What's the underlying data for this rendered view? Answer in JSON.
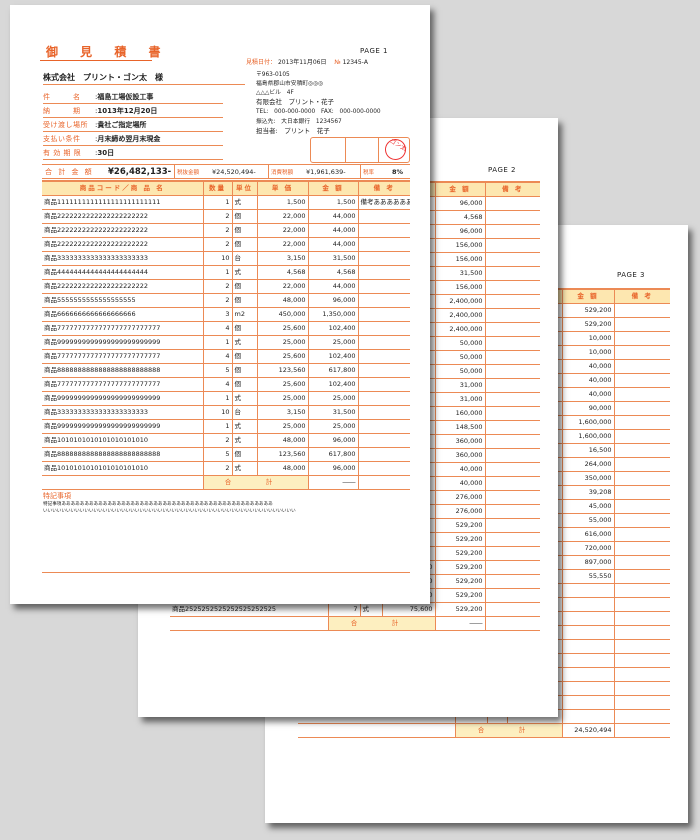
{
  "colors": {
    "accent": "#e8642a",
    "header_bg": "#fde7b0",
    "background": "#d8d8d8"
  },
  "page1": {
    "title": "御 見 積 書",
    "page_label": "PAGE 1",
    "date_label": "見積日付：",
    "date": "2013年11月06日",
    "no_label": "№",
    "no": "12345-A",
    "customer": "株式会社　プリント・ゴン太　様",
    "fields": [
      {
        "label": "件　　　名",
        "value": "福島工場仮設工事"
      },
      {
        "label": "納　　　期",
        "value": "1013年12月20日"
      },
      {
        "label": "受け渡し場所",
        "value": "貴社ご指定場所"
      },
      {
        "label": "支払い条件",
        "value": "月末締め翌月末現金"
      },
      {
        "label": "有 効 期 限",
        "value": "30日"
      }
    ],
    "issuer": [
      "〒963-0105",
      "福島県郡山市安積町◎◎◎",
      "△△△ビル　4F",
      "有限会社　プリント・花子",
      "TEL:　000-000-0000　FAX:　000-000-0000",
      "振込先:　大日本銀行　1234567",
      "担当者:　プリント　花子"
    ],
    "stamp_text": "ゴン太",
    "summary": {
      "total_label": "合 計 金 額",
      "total": "¥26,482,133-",
      "pretax_label": "税抜金額",
      "pretax": "¥24,520,494-",
      "tax_label": "消費税額",
      "tax": "¥1,961,639-",
      "rate_label": "税率",
      "rate": "8%"
    },
    "columns": [
      "商品コード／商 品 名",
      "数量",
      "単位",
      "単 価",
      "金 額",
      "備 考"
    ],
    "rows": [
      [
        "商品1111111111111111111111111",
        "1",
        "式",
        "1,500",
        "1,500",
        "備考ああああああ"
      ],
      [
        "商品2222222222222222222222",
        "2",
        "個",
        "22,000",
        "44,000",
        ""
      ],
      [
        "商品2222222222222222222222",
        "2",
        "個",
        "22,000",
        "44,000",
        ""
      ],
      [
        "商品2222222222222222222222",
        "2",
        "個",
        "22,000",
        "44,000",
        ""
      ],
      [
        "商品3333333333333333333333",
        "10",
        "台",
        "3,150",
        "31,500",
        ""
      ],
      [
        "商品4444444444444444444444",
        "1",
        "式",
        "4,568",
        "4,568",
        ""
      ],
      [
        "商品2222222222222222222222",
        "2",
        "個",
        "22,000",
        "44,000",
        ""
      ],
      [
        "商品5555555555555555555",
        "2",
        "個",
        "48,000",
        "96,000",
        ""
      ],
      [
        "商品6666666666666666666",
        "3",
        "m2",
        "450,000",
        "1,350,000",
        ""
      ],
      [
        "商品7777777777777777777777777",
        "4",
        "個",
        "25,600",
        "102,400",
        ""
      ],
      [
        "商品9999999999999999999999999",
        "1",
        "式",
        "25,000",
        "25,000",
        ""
      ],
      [
        "商品7777777777777777777777777",
        "4",
        "個",
        "25,600",
        "102,400",
        ""
      ],
      [
        "商品8888888888888888888888888",
        "5",
        "個",
        "123,560",
        "617,800",
        ""
      ],
      [
        "商品7777777777777777777777777",
        "4",
        "個",
        "25,600",
        "102,400",
        ""
      ],
      [
        "商品9999999999999999999999999",
        "1",
        "式",
        "25,000",
        "25,000",
        ""
      ],
      [
        "商品3333333333333333333333",
        "10",
        "台",
        "3,150",
        "31,500",
        ""
      ],
      [
        "商品9999999999999999999999999",
        "1",
        "式",
        "25,000",
        "25,000",
        ""
      ],
      [
        "商品1010101010101010101010",
        "2",
        "式",
        "48,000",
        "96,000",
        ""
      ],
      [
        "商品8888888888888888888888888",
        "5",
        "個",
        "123,560",
        "617,800",
        ""
      ],
      [
        "商品1010101010101010101010",
        "2",
        "式",
        "48,000",
        "96,000",
        ""
      ]
    ],
    "total_label": "合　計",
    "total_value": "――",
    "notes_label": "特記事項",
    "notes": [
      "特記事項ああああああああああああああああああああああああああああああああああああああああああああああ",
      "いいいいいいいいいいいいいいいいいいいいいいいいいいいいいいいいいいいいいいいいいいいいいいいいいいいいいいい"
    ]
  },
  "page2": {
    "page_label": "PAGE 2",
    "columns": [
      "商品コード／商 品 名",
      "数量",
      "単位",
      "単 価",
      "金 額",
      "備 考"
    ],
    "amounts": [
      "96,000",
      "4,568",
      "96,000",
      "156,000",
      "156,000",
      "31,500",
      "156,000",
      "2,400,000",
      "2,400,000",
      "2,400,000",
      "50,000",
      "50,000",
      "50,000",
      "31,000",
      "31,000",
      "160,000",
      "148,500",
      "360,000",
      "360,000",
      "40,000",
      "40,000",
      "276,000",
      "276,000",
      "529,200",
      "529,200",
      "529,200"
    ],
    "rows": [
      [
        "商品2222222222222222222222",
        "7",
        "式",
        "75,600",
        "529,200",
        ""
      ],
      [
        "商品2323232323232323232323",
        "7",
        "式",
        "75,600",
        "529,200",
        ""
      ],
      [
        "商品2424242424242424242424",
        "7",
        "式",
        "75,600",
        "529,200",
        ""
      ],
      [
        "商品2525252525252525252525",
        "7",
        "式",
        "75,600",
        "529,200",
        ""
      ]
    ],
    "total_label": "合　計",
    "total_value": "――"
  },
  "page3": {
    "page_label": "PAGE 3",
    "columns": [
      "商品コード／商 品 名",
      "数量",
      "単位",
      "単 価",
      "金 額",
      "備 考"
    ],
    "amounts": [
      "529,200",
      "529,200",
      "10,000",
      "10,000",
      "40,000",
      "40,000",
      "40,000",
      "90,000",
      "1,600,000",
      "1,600,000",
      "16,500",
      "264,000",
      "350,000",
      "39,208",
      "45,000",
      "55,000",
      "616,000",
      "720,000",
      "897,000",
      "55,550"
    ],
    "total_label": "合　計",
    "total_value": "24,520,494"
  }
}
